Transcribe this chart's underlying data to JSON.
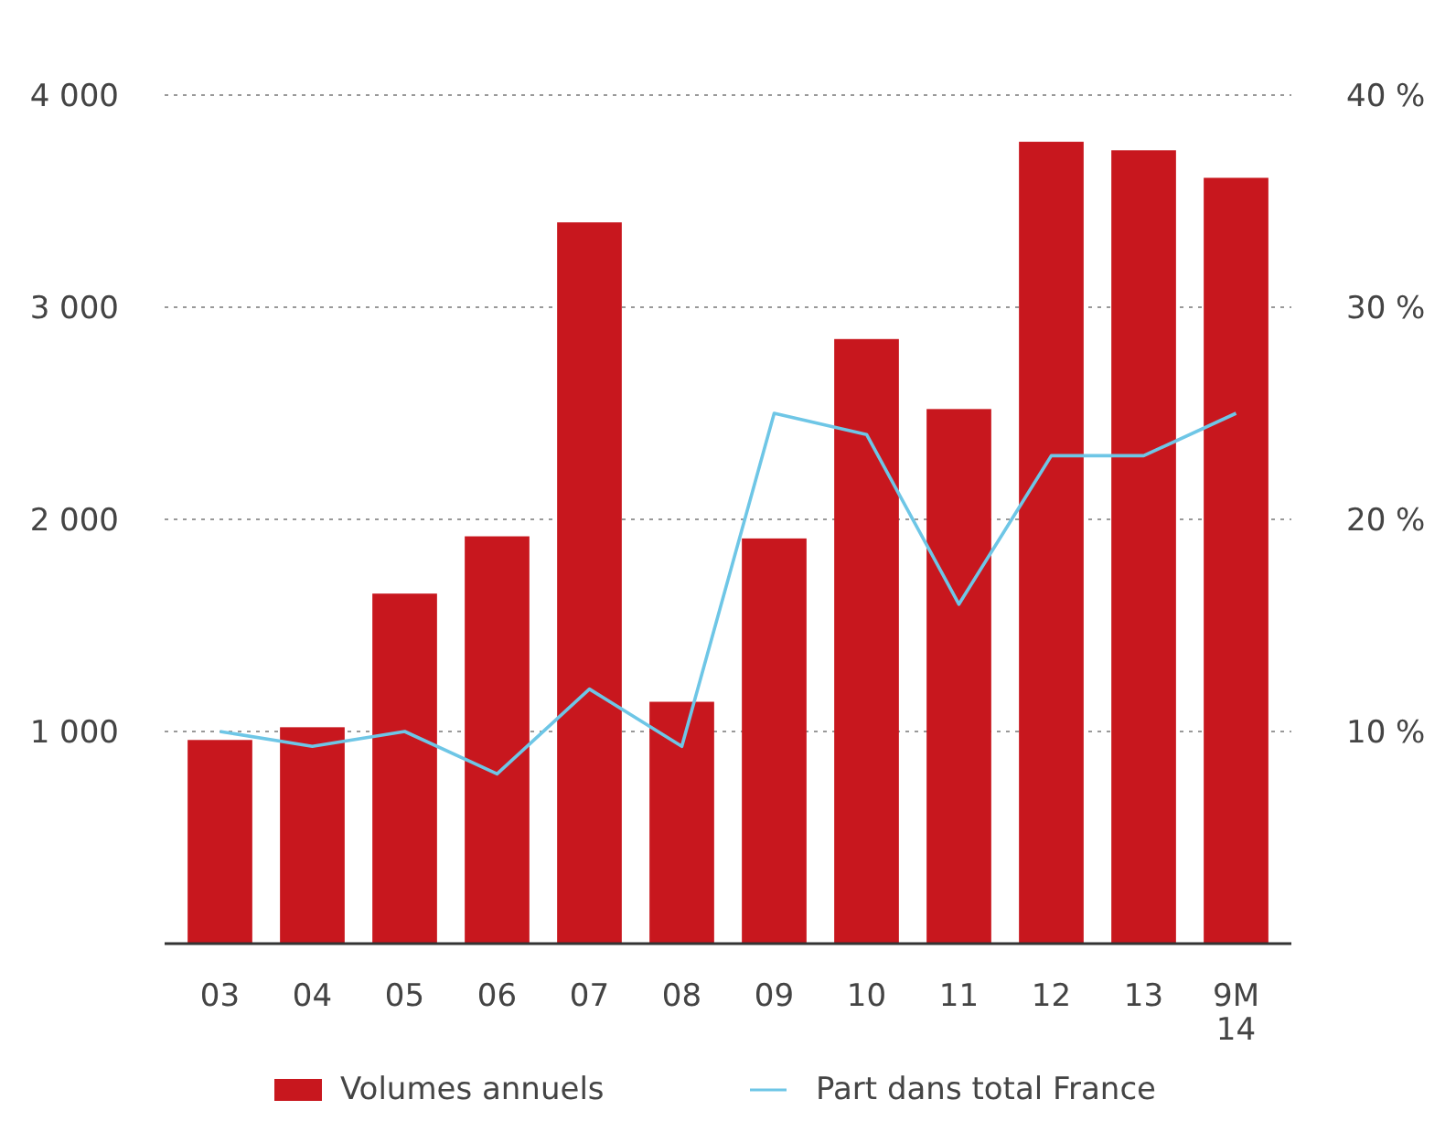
{
  "chart_data": {
    "type": "bar",
    "categories": [
      "03",
      "04",
      "05",
      "06",
      "07",
      "08",
      "09",
      "10",
      "11",
      "12",
      "13",
      "9M 14"
    ],
    "series": [
      {
        "name": "Volumes annuels",
        "color": "#c8171e",
        "values": [
          960,
          1020,
          1650,
          1920,
          3400,
          1140,
          1910,
          2850,
          2520,
          3780,
          3740,
          3610
        ]
      },
      {
        "name": "Part dans total France",
        "type": "line",
        "axis": "y2",
        "color": "#6ec6e6",
        "values": [
          10,
          9.3,
          10,
          8,
          12,
          9.3,
          25,
          24,
          16,
          23,
          23,
          25
        ]
      }
    ],
    "ylim": [
      0,
      4000
    ],
    "yticks": [
      {
        "value": 1000,
        "label": "1 000"
      },
      {
        "value": 2000,
        "label": "2 000"
      },
      {
        "value": 3000,
        "label": "3 000"
      },
      {
        "value": 4000,
        "label": "4 000"
      }
    ],
    "y2lim": [
      0,
      40
    ],
    "y2ticks": [
      {
        "value": 10,
        "label": "10 %"
      },
      {
        "value": 20,
        "label": "20 %"
      },
      {
        "value": 30,
        "label": "30 %"
      },
      {
        "value": 40,
        "label": "40 %"
      }
    ],
    "grid": "y",
    "legend": "bottom",
    "line_style": "solid"
  }
}
